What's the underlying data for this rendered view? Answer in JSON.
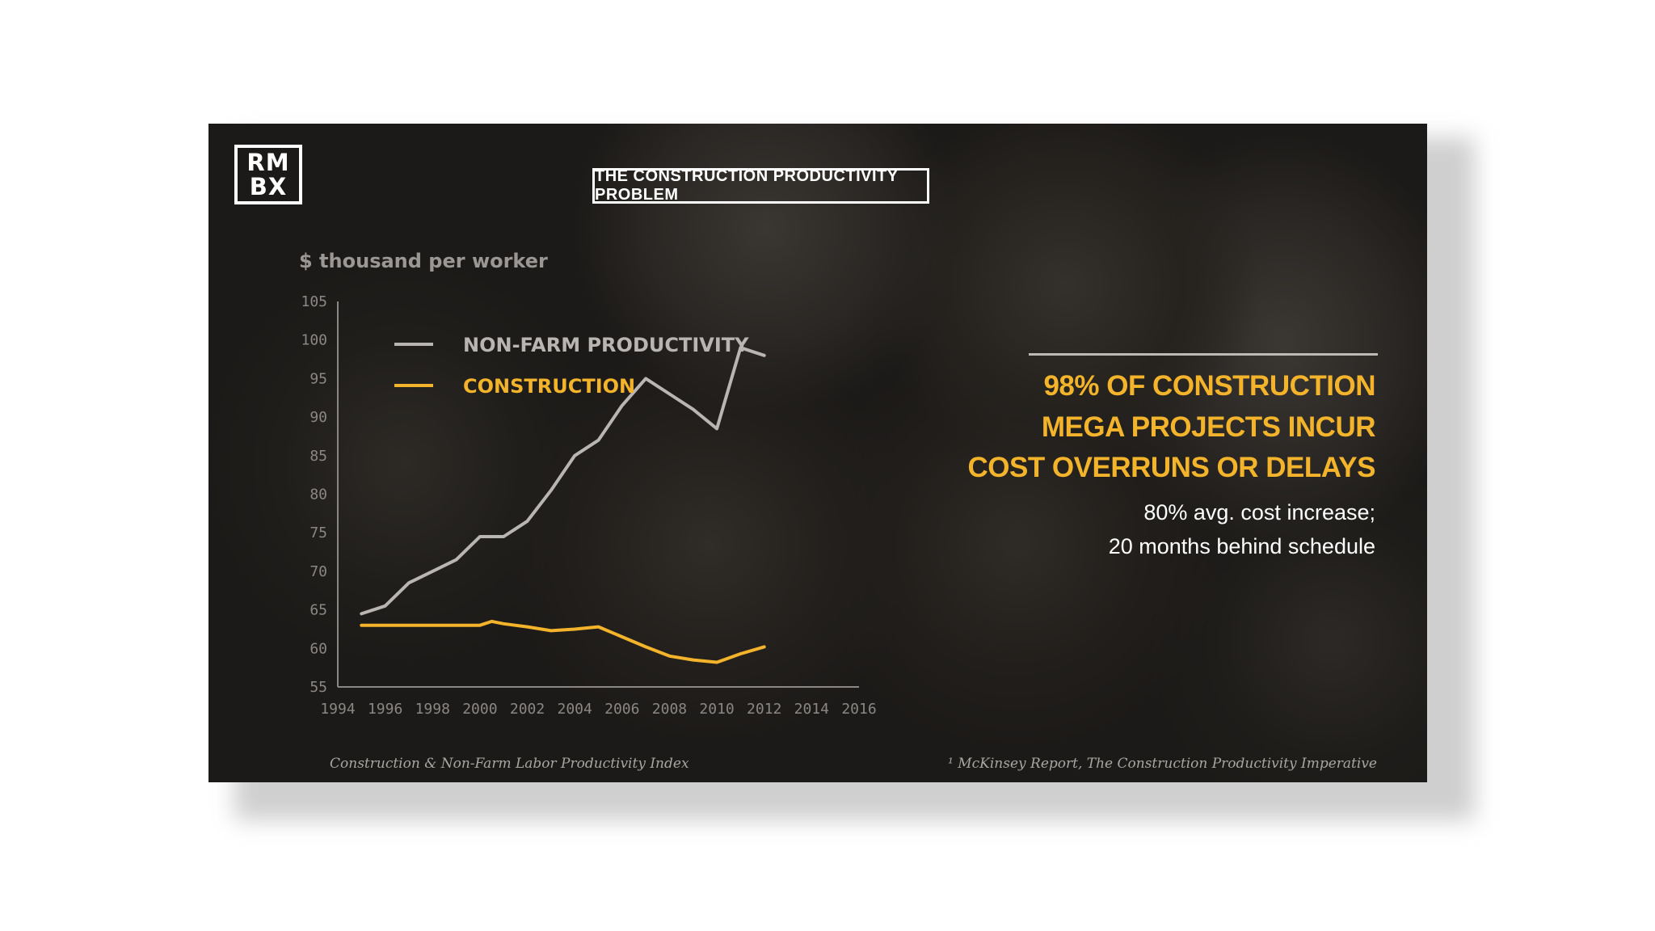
{
  "logo": {
    "line1": "RM",
    "line2": "BX"
  },
  "title": "THE CONSTRUCTION PRODUCTIVITY PROBLEM",
  "callout": {
    "headline": [
      "98% OF CONSTRUCTION",
      "MEGA PROJECTS INCUR",
      "COST OVERRUNS OR DELAYS"
    ],
    "sub": [
      "80% avg. cost increase;",
      "20 months behind schedule"
    ]
  },
  "footnotes": {
    "left": "Construction & Non-Farm Labor Productivity Index",
    "right": "¹ McKinsey Report, The Construction Productivity Imperative"
  },
  "colors": {
    "construction": "#f3b42c",
    "nonfarm": "#b8b5b2",
    "axis": "#8a8784"
  },
  "chart_data": {
    "type": "line",
    "title": "",
    "xlabel": "",
    "ylabel": "$ thousand per worker",
    "xlim": [
      1994,
      2016
    ],
    "ylim": [
      55,
      105
    ],
    "x_ticks": [
      1994,
      1996,
      1998,
      2000,
      2002,
      2004,
      2006,
      2008,
      2010,
      2012,
      2014,
      2016
    ],
    "y_ticks": [
      55,
      60,
      65,
      70,
      75,
      80,
      85,
      90,
      95,
      100,
      105
    ],
    "legend_position": "top-left",
    "series": [
      {
        "name": "NON-FARM PRODUCTIVITY",
        "color": "#b8b5b2",
        "x": [
          1995,
          1996,
          1997,
          1998,
          1999,
          2000,
          2001,
          2002,
          2003,
          2004,
          2005,
          2006,
          2007,
          2008,
          2009,
          2010,
          2011,
          2012
        ],
        "y": [
          64.5,
          65.5,
          68.5,
          70,
          71.5,
          74.5,
          74.5,
          76.5,
          80.5,
          85,
          87,
          91.5,
          95,
          93,
          91,
          88.5,
          99,
          98
        ]
      },
      {
        "name": "CONSTRUCTION",
        "color": "#f3b42c",
        "x": [
          1995,
          1996,
          1997,
          1998,
          1999,
          2000,
          2000.5,
          2001,
          2002,
          2003,
          2004,
          2005,
          2006,
          2007,
          2008,
          2009,
          2010,
          2011,
          2012
        ],
        "y": [
          63,
          63,
          63,
          63,
          63,
          63,
          63.5,
          63.2,
          62.8,
          62.3,
          62.5,
          62.8,
          61.5,
          60.2,
          59,
          58.5,
          58.2,
          59.3,
          60.2
        ]
      }
    ]
  }
}
